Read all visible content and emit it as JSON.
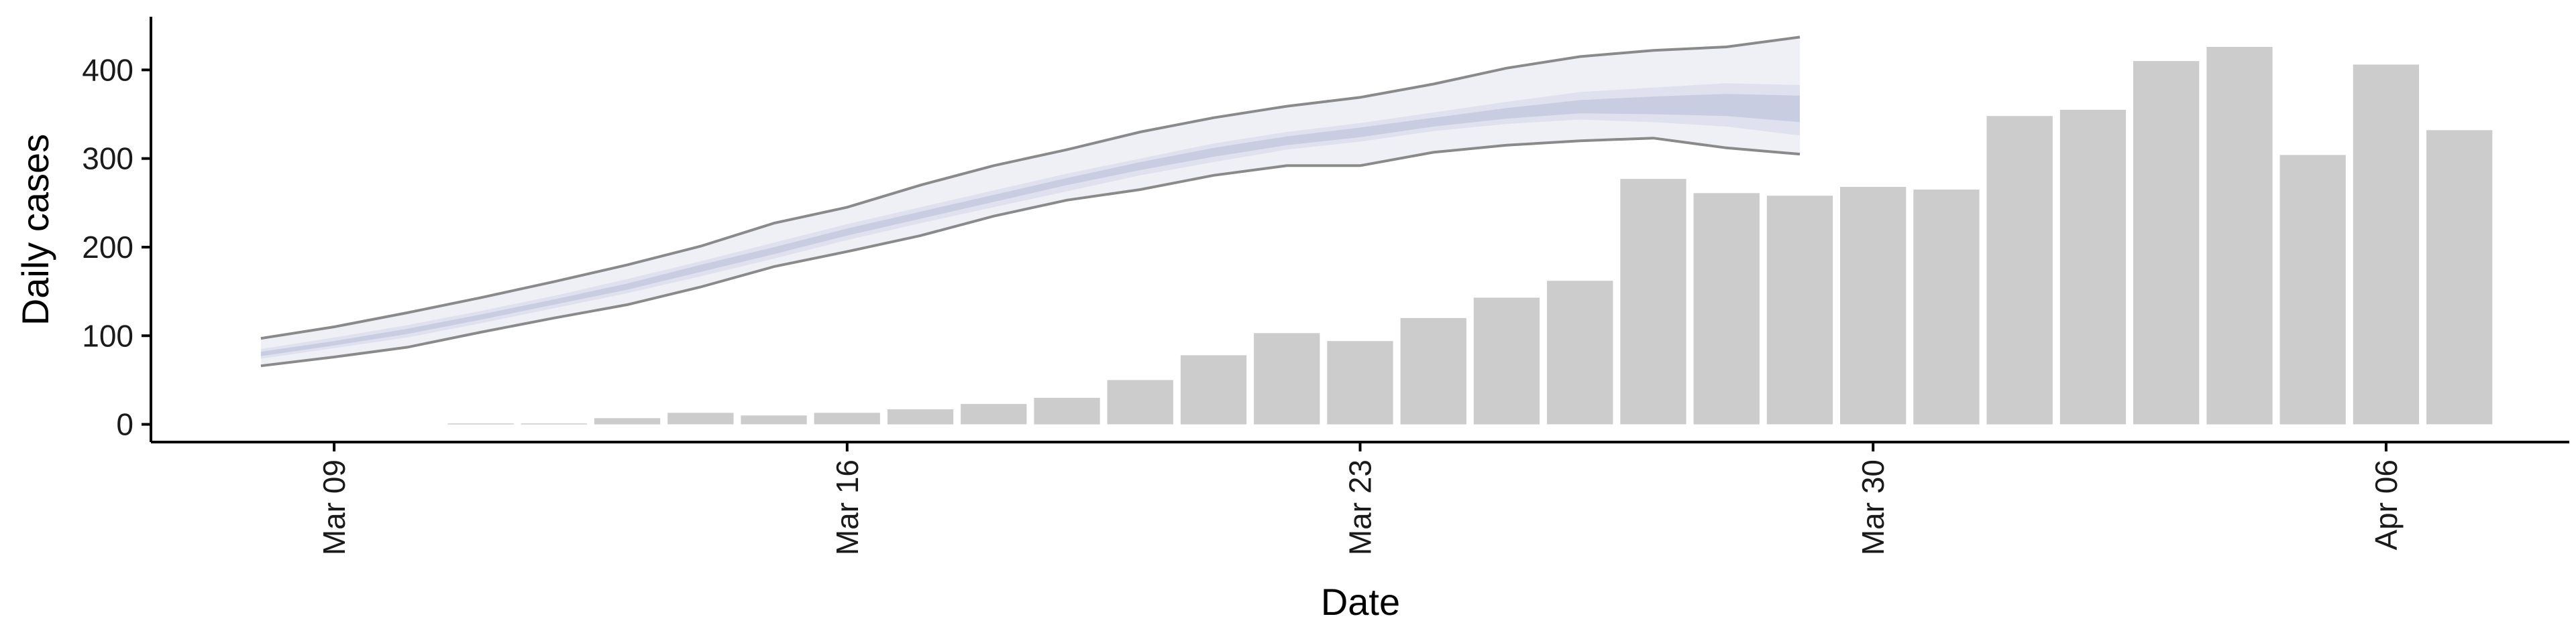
{
  "chart_data": {
    "type": "bar",
    "xlabel": "Date",
    "ylabel": "Daily cases",
    "ylim": [
      -20,
      460
    ],
    "yticks": [
      0,
      100,
      200,
      300,
      400
    ],
    "xrange_day": [
      -2.5,
      30.5
    ],
    "x_base_date": "2020-03-09",
    "xticks": [
      {
        "day": 0,
        "label": "Mar 09"
      },
      {
        "day": 7,
        "label": "Mar 16"
      },
      {
        "day": 14,
        "label": "Mar 23"
      },
      {
        "day": 21,
        "label": "Mar 30"
      },
      {
        "day": 28,
        "label": "Apr 06"
      }
    ],
    "bars": {
      "name": "Daily cases",
      "color": "#cccccc",
      "dates": [
        "Mar 11",
        "Mar 12",
        "Mar 13",
        "Mar 14",
        "Mar 15",
        "Mar 16",
        "Mar 17",
        "Mar 18",
        "Mar 19",
        "Mar 20",
        "Mar 21",
        "Mar 22",
        "Mar 23",
        "Mar 24",
        "Mar 25",
        "Mar 26",
        "Mar 27",
        "Mar 28",
        "Mar 29",
        "Mar 30",
        "Mar 31",
        "Apr 01",
        "Apr 02",
        "Apr 03",
        "Apr 04",
        "Apr 05",
        "Apr 06",
        "Apr 07"
      ],
      "values": [
        1,
        1,
        7,
        13,
        10,
        13,
        17,
        23,
        30,
        50,
        78,
        103,
        94,
        120,
        143,
        162,
        277,
        261,
        258,
        268,
        265,
        348,
        355,
        410,
        426,
        304,
        406,
        332
      ]
    },
    "nowcast": {
      "dates": [
        "Mar 08",
        "Mar 09",
        "Mar 10",
        "Mar 11",
        "Mar 12",
        "Mar 13",
        "Mar 14",
        "Mar 15",
        "Mar 16",
        "Mar 17",
        "Mar 18",
        "Mar 19",
        "Mar 20",
        "Mar 21",
        "Mar 22",
        "Mar 23",
        "Mar 24",
        "Mar 25",
        "Mar 26",
        "Mar 27",
        "Mar 28",
        "Mar 29"
      ],
      "outer_upper": [
        97,
        110,
        126,
        143,
        161,
        180,
        201,
        227,
        245,
        270,
        292,
        310,
        330,
        346,
        359,
        369,
        384,
        402,
        415,
        422,
        426,
        437
      ],
      "outer_lower": [
        66,
        76,
        87,
        104,
        120,
        135,
        155,
        178,
        195,
        213,
        235,
        253,
        265,
        281,
        292,
        292,
        307,
        315,
        320,
        323,
        312,
        305
      ],
      "mid_upper": [
        85,
        98,
        112,
        128,
        145,
        164,
        184,
        205,
        226,
        245,
        264,
        283,
        300,
        317,
        330,
        340,
        352,
        364,
        375,
        380,
        385,
        383
      ],
      "mid_lower": [
        74,
        86,
        98,
        114,
        131,
        148,
        167,
        187,
        208,
        227,
        245,
        263,
        281,
        296,
        310,
        319,
        331,
        339,
        344,
        341,
        336,
        326
      ],
      "inner_upper": [
        82,
        94,
        108,
        124,
        141,
        159,
        180,
        200,
        221,
        240,
        259,
        278,
        296,
        312,
        325,
        335,
        346,
        357,
        366,
        370,
        373,
        371
      ],
      "inner_lower": [
        77,
        89,
        102,
        118,
        135,
        152,
        172,
        192,
        213,
        232,
        251,
        270,
        287,
        302,
        315,
        324,
        336,
        345,
        351,
        350,
        348,
        341
      ],
      "colors": {
        "outer_fill": "#eef0f5",
        "mid_fill": "#dfe2ee",
        "inner_fill": "#c8cde2",
        "outline": "#8a8a8a"
      }
    }
  }
}
